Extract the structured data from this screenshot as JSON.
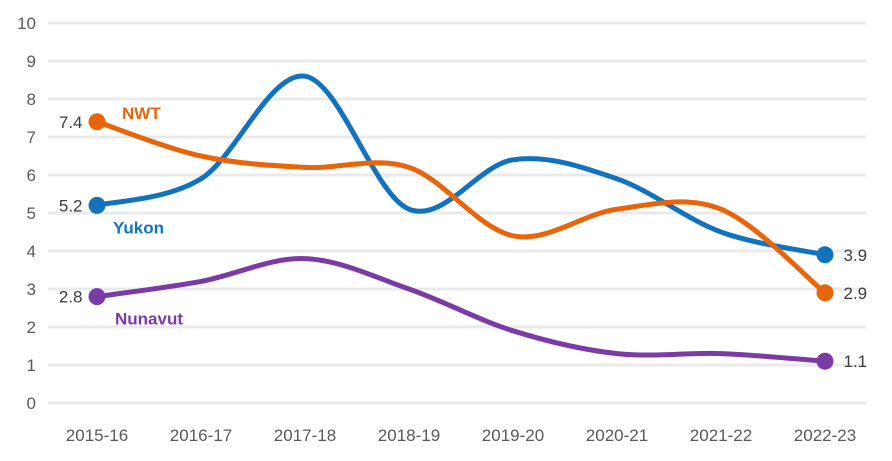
{
  "chart_data": {
    "type": "line",
    "title": "",
    "xlabel": "",
    "ylabel": "",
    "categories": [
      "2015-16",
      "2016-17",
      "2017-18",
      "2018-19",
      "2019-20",
      "2020-21",
      "2021-22",
      "2022-23"
    ],
    "ylim": [
      0,
      10
    ],
    "yticks": [
      0,
      1,
      2,
      3,
      4,
      5,
      6,
      7,
      8,
      9,
      10
    ],
    "grid": "horizontal",
    "legend": "inline-series-labels",
    "line_style": "smooth-spline",
    "background": "#FFFFFF",
    "colors": {
      "gridline": "#EAEAEA",
      "tick_label": "#595959",
      "value_label": "#3C3C3C"
    },
    "series": [
      {
        "name": "Yukon",
        "color": "#1272BE",
        "values": [
          5.2,
          5.9,
          8.6,
          5.1,
          6.4,
          5.9,
          4.5,
          3.9
        ],
        "start_label": "5.2",
        "end_label": "3.9",
        "name_label": {
          "text": "Yukon",
          "dx": 16,
          "dy": 28
        }
      },
      {
        "name": "NWT",
        "color": "#E8650C",
        "values": [
          7.4,
          6.5,
          6.2,
          6.2,
          4.4,
          5.1,
          5.1,
          2.9
        ],
        "start_label": "7.4",
        "end_label": "2.9",
        "name_label": {
          "text": "NWT",
          "dx": 25,
          "dy": -3
        }
      },
      {
        "name": "Nunavut",
        "color": "#7A3BA5",
        "values": [
          2.8,
          3.2,
          3.8,
          3.0,
          1.9,
          1.3,
          1.3,
          1.1
        ],
        "start_label": "2.8",
        "end_label": "1.1",
        "name_label": {
          "text": "Nunavut",
          "dx": 18,
          "dy": 28
        }
      }
    ]
  }
}
